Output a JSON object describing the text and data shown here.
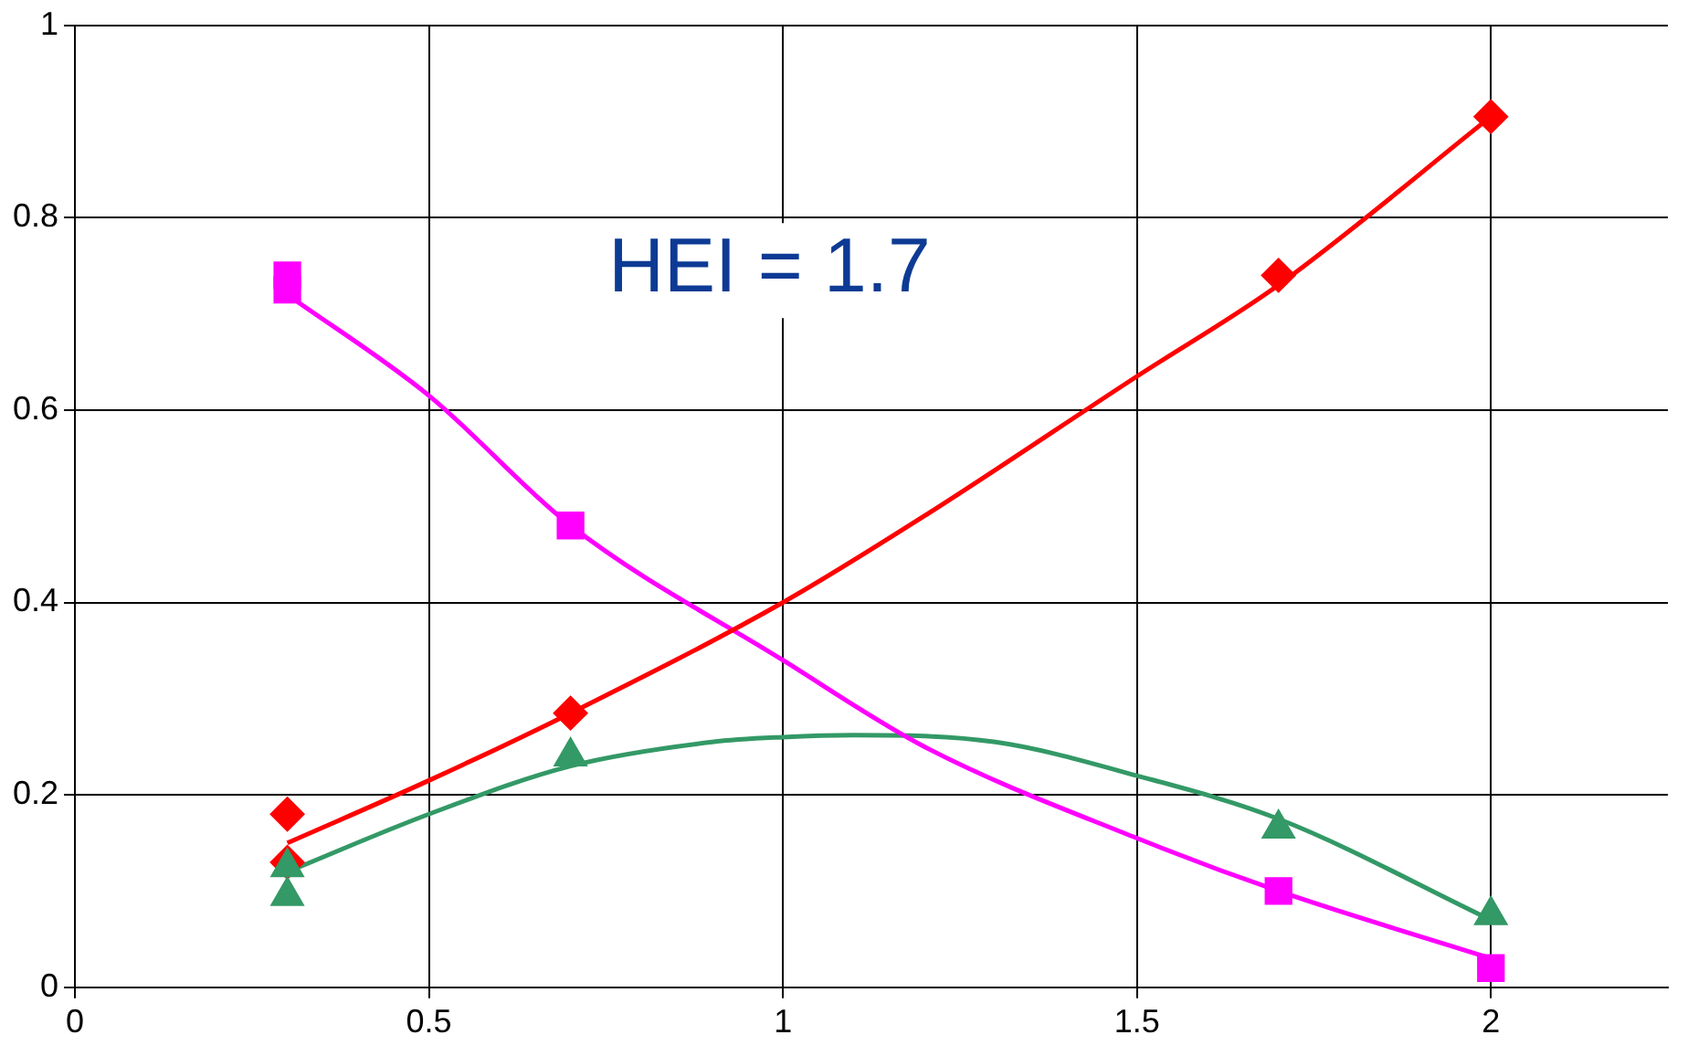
{
  "chart_data": {
    "type": "scatter",
    "xlim": [
      0,
      2.25
    ],
    "xticks": [
      0,
      0.5,
      1,
      1.5,
      2
    ],
    "ylim": [
      0,
      1
    ],
    "yticks": [
      0,
      0.2,
      0.4,
      0.6,
      0.8,
      1
    ],
    "grid": true,
    "legend": false,
    "annotations": [
      "HEI = 1.7"
    ],
    "series": [
      {
        "type": "line",
        "color": "#ff0000",
        "marker": "none",
        "x": [
          0.3,
          0.5,
          0.7,
          1,
          1.2,
          1.5,
          1.7,
          2
        ],
        "values": [
          0.15,
          0.215,
          0.285,
          0.4,
          0.49,
          0.635,
          0.73,
          0.905
        ]
      },
      {
        "type": "line",
        "color": "#ff00ff",
        "marker": "none",
        "x": [
          0.3,
          0.5,
          0.7,
          1,
          1.2,
          1.5,
          1.7,
          2
        ],
        "values": [
          0.72,
          0.615,
          0.48,
          0.34,
          0.25,
          0.155,
          0.1,
          0.03
        ]
      },
      {
        "type": "line",
        "color": "#339966",
        "marker": "none",
        "x": [
          0.3,
          0.5,
          0.7,
          0.9,
          1,
          1.1,
          1.3,
          1.5,
          1.7,
          2
        ],
        "values": [
          0.12,
          0.18,
          0.23,
          0.255,
          0.26,
          0.262,
          0.255,
          0.22,
          0.175,
          0.07
        ]
      },
      {
        "color": "#ff0000",
        "marker": "diamond",
        "x": [
          0.3,
          0.3,
          0.7,
          1.7,
          2
        ],
        "values": [
          0.18,
          0.13,
          0.285,
          0.74,
          0.905
        ]
      },
      {
        "color": "#ff00ff",
        "marker": "square",
        "x": [
          0.3,
          0.3,
          0.7,
          1.7,
          2
        ],
        "values": [
          0.74,
          0.725,
          0.48,
          0.1,
          0.02
        ]
      },
      {
        "color": "#339966",
        "marker": "triangle",
        "x": [
          0.3,
          0.3,
          0.7,
          1.7,
          2
        ],
        "values": [
          0.125,
          0.095,
          0.24,
          0.165,
          0.075
        ]
      }
    ]
  }
}
